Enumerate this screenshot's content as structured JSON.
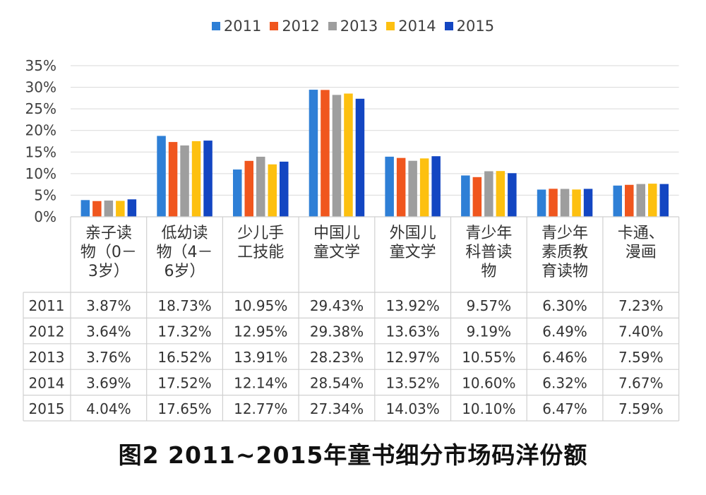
{
  "chart_data": {
    "type": "bar",
    "categories": [
      "亲子读物（0－3岁）",
      "低幼读物（4－6岁）",
      "少儿手工技能",
      "中国儿童文学",
      "外国儿童文学",
      "青少年科普读物",
      "青少年素质教育读物",
      "卡通、漫画"
    ],
    "category_lines": [
      [
        "亲子读",
        "物（0－",
        "3岁）"
      ],
      [
        "低幼读",
        "物（4－",
        "6岁）"
      ],
      [
        "少儿手",
        "工技能"
      ],
      [
        "中国儿",
        "童文学"
      ],
      [
        "外国儿",
        "童文学"
      ],
      [
        "青少年",
        "科普读",
        "物"
      ],
      [
        "青少年",
        "素质教",
        "育读物"
      ],
      [
        "卡通、",
        "漫画"
      ]
    ],
    "series": [
      {
        "name": "2011",
        "color": "#2E7FD6",
        "values": [
          3.87,
          18.73,
          10.95,
          29.43,
          13.92,
          9.57,
          6.3,
          7.23
        ]
      },
      {
        "name": "2012",
        "color": "#F0561E",
        "values": [
          3.64,
          17.32,
          12.95,
          29.38,
          13.63,
          9.19,
          6.49,
          7.4
        ]
      },
      {
        "name": "2013",
        "color": "#9E9E9E",
        "values": [
          3.76,
          16.52,
          13.91,
          28.23,
          12.97,
          10.55,
          6.46,
          7.59
        ]
      },
      {
        "name": "2014",
        "color": "#FDC010",
        "values": [
          3.69,
          17.52,
          12.14,
          28.54,
          13.52,
          10.6,
          6.32,
          7.67
        ]
      },
      {
        "name": "2015",
        "color": "#1346C2",
        "values": [
          4.04,
          17.65,
          12.77,
          27.34,
          14.03,
          10.1,
          6.47,
          7.59
        ]
      }
    ],
    "table_values": [
      [
        "3.87%",
        "18.73%",
        "10.95%",
        "29.43%",
        "13.92%",
        "9.57%",
        "6.30%",
        "7.23%"
      ],
      [
        "3.64%",
        "17.32%",
        "12.95%",
        "29.38%",
        "13.63%",
        "9.19%",
        "6.49%",
        "7.40%"
      ],
      [
        "3.76%",
        "16.52%",
        "13.91%",
        "28.23%",
        "12.97%",
        "10.55%",
        "6.46%",
        "7.59%"
      ],
      [
        "3.69%",
        "17.52%",
        "12.14%",
        "28.54%",
        "13.52%",
        "10.60%",
        "6.32%",
        "7.67%"
      ],
      [
        "4.04%",
        "17.65%",
        "12.77%",
        "27.34%",
        "14.03%",
        "10.10%",
        "6.47%",
        "7.59%"
      ]
    ],
    "ylim": [
      0,
      35
    ],
    "yticks": [
      0,
      5,
      10,
      15,
      20,
      25,
      30,
      35
    ],
    "ytick_labels": [
      "0%",
      "5%",
      "10%",
      "15%",
      "20%",
      "25%",
      "30%",
      "35%"
    ],
    "grid": true,
    "legend_position": "top-center",
    "caption": "图2  2011~2015年童书细分市场码洋份额"
  }
}
